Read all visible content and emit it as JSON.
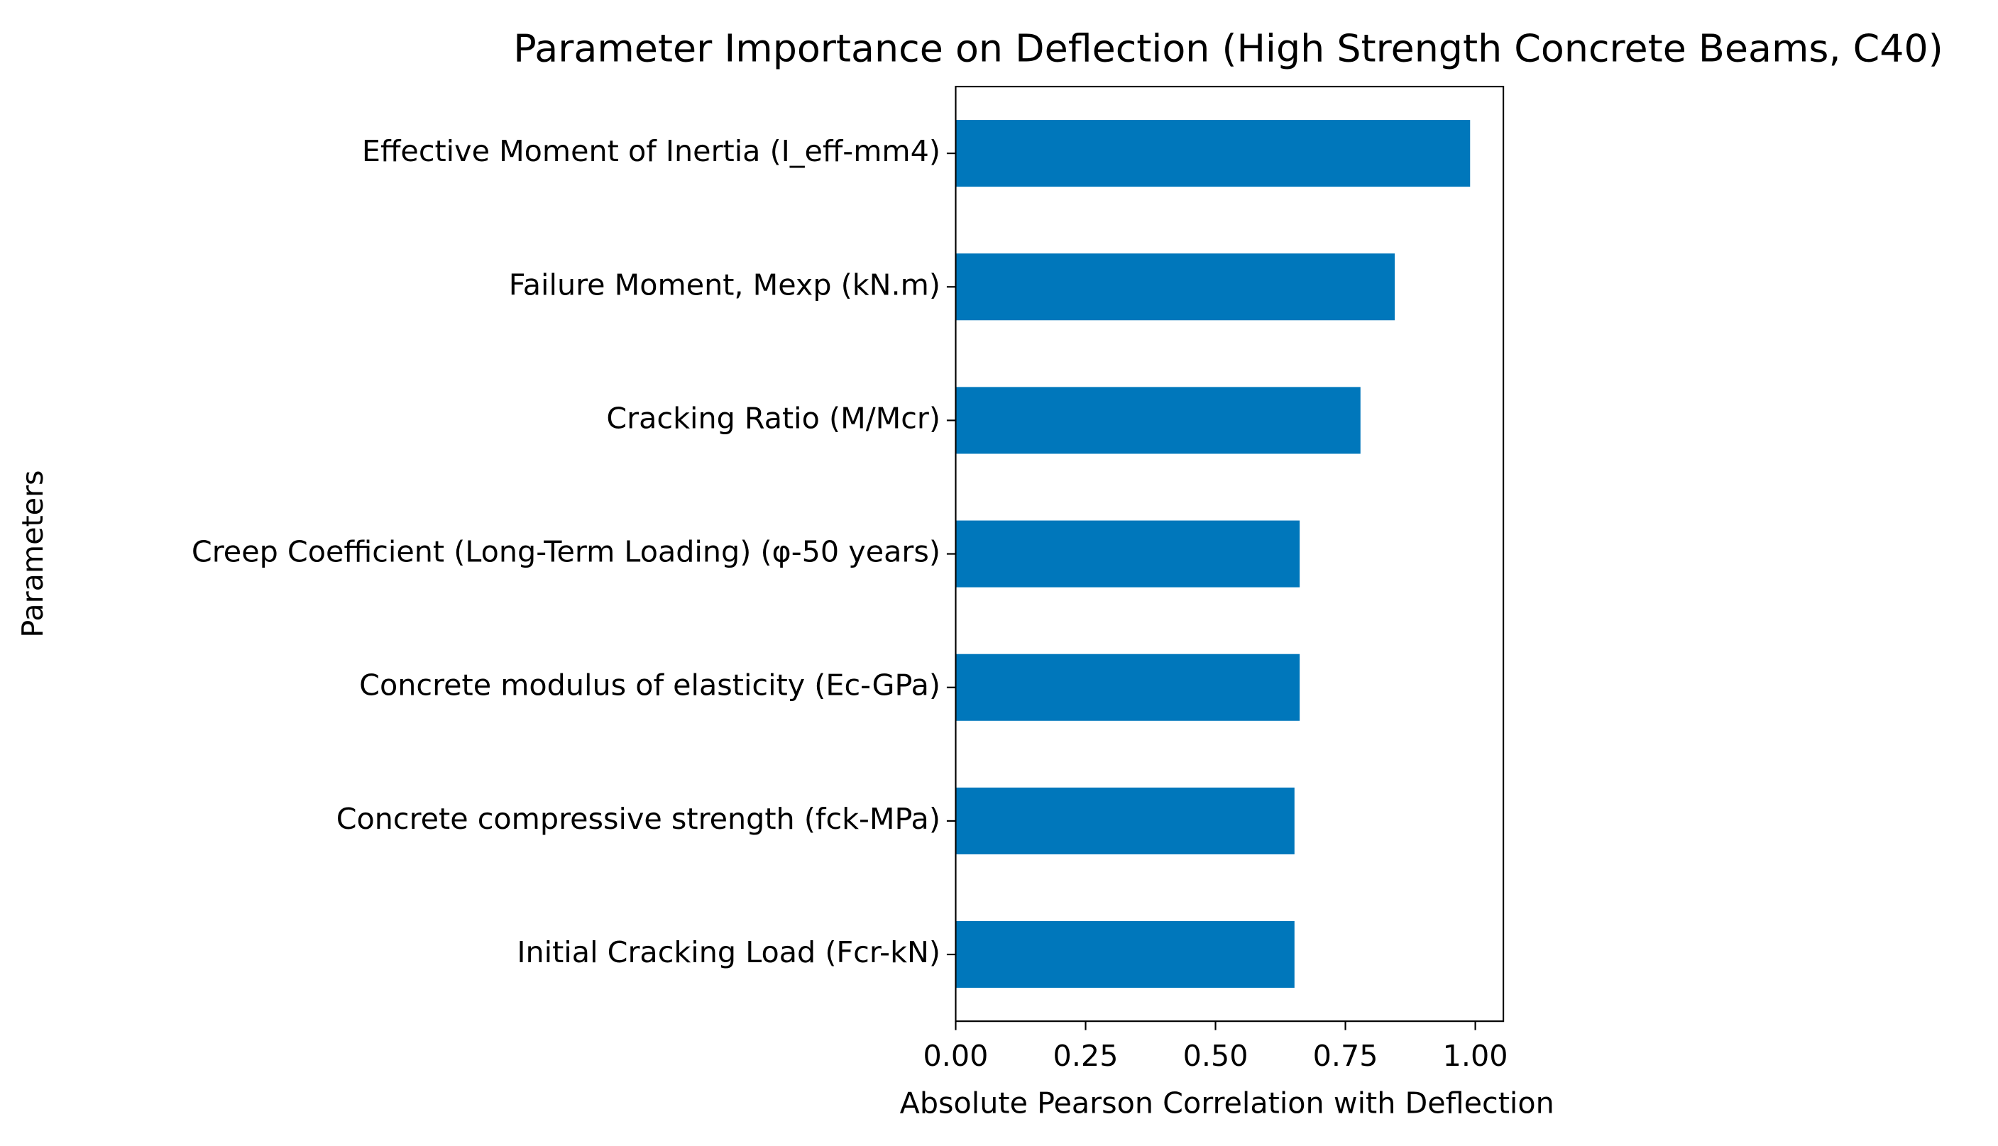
{
  "chart_data": {
    "type": "barh",
    "title": "Parameter Importance on Deflection (High Strength Concrete Beams, C40)",
    "x_label": "Absolute Pearson Correlation with Deflection",
    "y_label": "Parameters",
    "categories": [
      "Effective Moment of Inertia (I_eff-mm4)",
      "Failure Moment, Mexp (kN.m)",
      "Cracking Ratio (M/Mcr)",
      "Creep Coefficient (Long-Term Loading) (φ-50 years)",
      "Concrete modulus of elasticity (Ec-GPa)",
      "Concrete compressive strength (fck-MPa)",
      "Initial Cracking Load (Fcr-kN)"
    ],
    "values": [
      0.99,
      0.845,
      0.779,
      0.662,
      0.662,
      0.652,
      0.652
    ],
    "color": "#0077bb",
    "xlim": [
      0,
      1.054
    ],
    "xticks": [
      {
        "value": 0,
        "label": "0.00"
      },
      {
        "value": 0.25,
        "label": "0.25"
      },
      {
        "value": 0.5,
        "label": "0.50"
      },
      {
        "value": 0.75,
        "label": "0.75"
      },
      {
        "value": 1,
        "label": "1.00"
      }
    ],
    "grid": false
  }
}
